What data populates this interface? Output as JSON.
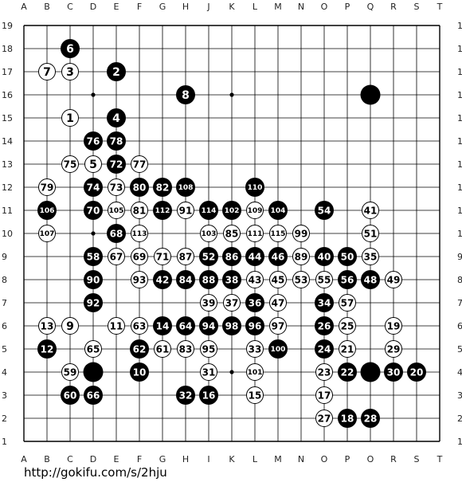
{
  "board": {
    "size": 19,
    "columns": [
      "A",
      "B",
      "C",
      "D",
      "E",
      "F",
      "G",
      "H",
      "J",
      "K",
      "L",
      "M",
      "N",
      "O",
      "P",
      "Q",
      "R",
      "S",
      "T"
    ],
    "rows": [
      19,
      18,
      17,
      16,
      15,
      14,
      13,
      12,
      11,
      10,
      9,
      8,
      7,
      6,
      5,
      4,
      3,
      2,
      1
    ],
    "hoshi": [
      "D16",
      "K16",
      "D10",
      "K4"
    ],
    "colors": {
      "line": "#000000",
      "black": "#000000",
      "white": "#ffffff",
      "background": "#ffffff"
    }
  },
  "stones": [
    {
      "c": "black",
      "p": "Q16",
      "n": ""
    },
    {
      "c": "black",
      "p": "D4",
      "n": ""
    },
    {
      "c": "black",
      "p": "Q4",
      "n": ""
    },
    {
      "c": "black",
      "p": "C18",
      "n": "6"
    },
    {
      "c": "white",
      "p": "B17",
      "n": "7"
    },
    {
      "c": "white",
      "p": "C17",
      "n": "3"
    },
    {
      "c": "black",
      "p": "E17",
      "n": "2"
    },
    {
      "c": "black",
      "p": "H16",
      "n": "8"
    },
    {
      "c": "white",
      "p": "C15",
      "n": "1"
    },
    {
      "c": "black",
      "p": "E15",
      "n": "4"
    },
    {
      "c": "black",
      "p": "D14",
      "n": "76"
    },
    {
      "c": "black",
      "p": "E14",
      "n": "78"
    },
    {
      "c": "white",
      "p": "C13",
      "n": "75"
    },
    {
      "c": "white",
      "p": "D13",
      "n": "5"
    },
    {
      "c": "black",
      "p": "E13",
      "n": "72"
    },
    {
      "c": "white",
      "p": "F13",
      "n": "77"
    },
    {
      "c": "white",
      "p": "B12",
      "n": "79"
    },
    {
      "c": "black",
      "p": "D12",
      "n": "74"
    },
    {
      "c": "white",
      "p": "E12",
      "n": "73"
    },
    {
      "c": "black",
      "p": "F12",
      "n": "80"
    },
    {
      "c": "black",
      "p": "G12",
      "n": "82"
    },
    {
      "c": "black",
      "p": "H12",
      "n": "108"
    },
    {
      "c": "black",
      "p": "L12",
      "n": "110"
    },
    {
      "c": "black",
      "p": "B11",
      "n": "106"
    },
    {
      "c": "black",
      "p": "D11",
      "n": "70"
    },
    {
      "c": "white",
      "p": "E11",
      "n": "105"
    },
    {
      "c": "white",
      "p": "F11",
      "n": "81"
    },
    {
      "c": "black",
      "p": "G11",
      "n": "112"
    },
    {
      "c": "white",
      "p": "H11",
      "n": "91"
    },
    {
      "c": "black",
      "p": "J11",
      "n": "114"
    },
    {
      "c": "black",
      "p": "K11",
      "n": "102"
    },
    {
      "c": "white",
      "p": "L11",
      "n": "109"
    },
    {
      "c": "black",
      "p": "M11",
      "n": "104"
    },
    {
      "c": "black",
      "p": "O11",
      "n": "54"
    },
    {
      "c": "white",
      "p": "Q11",
      "n": "41"
    },
    {
      "c": "white",
      "p": "B10",
      "n": "107"
    },
    {
      "c": "black",
      "p": "E10",
      "n": "68"
    },
    {
      "c": "white",
      "p": "F10",
      "n": "113"
    },
    {
      "c": "white",
      "p": "J10",
      "n": "103"
    },
    {
      "c": "white",
      "p": "K10",
      "n": "85"
    },
    {
      "c": "white",
      "p": "L10",
      "n": "111"
    },
    {
      "c": "white",
      "p": "M10",
      "n": "115"
    },
    {
      "c": "white",
      "p": "N10",
      "n": "99"
    },
    {
      "c": "white",
      "p": "Q10",
      "n": "51"
    },
    {
      "c": "black",
      "p": "D9",
      "n": "58"
    },
    {
      "c": "white",
      "p": "E9",
      "n": "67"
    },
    {
      "c": "white",
      "p": "F9",
      "n": "69"
    },
    {
      "c": "white",
      "p": "G9",
      "n": "71"
    },
    {
      "c": "white",
      "p": "H9",
      "n": "87"
    },
    {
      "c": "black",
      "p": "J9",
      "n": "52"
    },
    {
      "c": "black",
      "p": "K9",
      "n": "86"
    },
    {
      "c": "black",
      "p": "L9",
      "n": "44"
    },
    {
      "c": "black",
      "p": "M9",
      "n": "46"
    },
    {
      "c": "white",
      "p": "N9",
      "n": "89"
    },
    {
      "c": "black",
      "p": "O9",
      "n": "40"
    },
    {
      "c": "black",
      "p": "P9",
      "n": "50"
    },
    {
      "c": "white",
      "p": "Q9",
      "n": "35"
    },
    {
      "c": "black",
      "p": "D8",
      "n": "90"
    },
    {
      "c": "white",
      "p": "F8",
      "n": "93"
    },
    {
      "c": "black",
      "p": "G8",
      "n": "42"
    },
    {
      "c": "black",
      "p": "H8",
      "n": "84"
    },
    {
      "c": "black",
      "p": "J8",
      "n": "88"
    },
    {
      "c": "black",
      "p": "K8",
      "n": "38"
    },
    {
      "c": "white",
      "p": "L8",
      "n": "43"
    },
    {
      "c": "white",
      "p": "M8",
      "n": "45"
    },
    {
      "c": "white",
      "p": "N8",
      "n": "53"
    },
    {
      "c": "white",
      "p": "O8",
      "n": "55"
    },
    {
      "c": "black",
      "p": "P8",
      "n": "56"
    },
    {
      "c": "black",
      "p": "Q8",
      "n": "48"
    },
    {
      "c": "white",
      "p": "R8",
      "n": "49"
    },
    {
      "c": "black",
      "p": "D7",
      "n": "92"
    },
    {
      "c": "white",
      "p": "J7",
      "n": "39"
    },
    {
      "c": "white",
      "p": "K7",
      "n": "37"
    },
    {
      "c": "black",
      "p": "L7",
      "n": "36"
    },
    {
      "c": "white",
      "p": "M7",
      "n": "47"
    },
    {
      "c": "black",
      "p": "O7",
      "n": "34"
    },
    {
      "c": "white",
      "p": "P7",
      "n": "57"
    },
    {
      "c": "white",
      "p": "B6",
      "n": "13"
    },
    {
      "c": "white",
      "p": "C6",
      "n": "9"
    },
    {
      "c": "white",
      "p": "E6",
      "n": "11"
    },
    {
      "c": "white",
      "p": "F6",
      "n": "63"
    },
    {
      "c": "black",
      "p": "G6",
      "n": "14"
    },
    {
      "c": "black",
      "p": "H6",
      "n": "64"
    },
    {
      "c": "black",
      "p": "J6",
      "n": "94"
    },
    {
      "c": "black",
      "p": "K6",
      "n": "98"
    },
    {
      "c": "black",
      "p": "L6",
      "n": "96"
    },
    {
      "c": "white",
      "p": "M6",
      "n": "97"
    },
    {
      "c": "black",
      "p": "O6",
      "n": "26"
    },
    {
      "c": "white",
      "p": "P6",
      "n": "25"
    },
    {
      "c": "white",
      "p": "R6",
      "n": "19"
    },
    {
      "c": "black",
      "p": "B5",
      "n": "12"
    },
    {
      "c": "white",
      "p": "D5",
      "n": "65"
    },
    {
      "c": "black",
      "p": "F5",
      "n": "62"
    },
    {
      "c": "white",
      "p": "G5",
      "n": "61"
    },
    {
      "c": "white",
      "p": "H5",
      "n": "83"
    },
    {
      "c": "white",
      "p": "J5",
      "n": "95"
    },
    {
      "c": "white",
      "p": "L5",
      "n": "33"
    },
    {
      "c": "black",
      "p": "M5",
      "n": "100"
    },
    {
      "c": "black",
      "p": "O5",
      "n": "24"
    },
    {
      "c": "white",
      "p": "P5",
      "n": "21"
    },
    {
      "c": "white",
      "p": "R5",
      "n": "29"
    },
    {
      "c": "white",
      "p": "C4",
      "n": "59"
    },
    {
      "c": "black",
      "p": "F4",
      "n": "10"
    },
    {
      "c": "white",
      "p": "J4",
      "n": "31"
    },
    {
      "c": "white",
      "p": "L4",
      "n": "101"
    },
    {
      "c": "white",
      "p": "O4",
      "n": "23"
    },
    {
      "c": "black",
      "p": "P4",
      "n": "22"
    },
    {
      "c": "black",
      "p": "R4",
      "n": "30"
    },
    {
      "c": "black",
      "p": "S4",
      "n": "20"
    },
    {
      "c": "black",
      "p": "C3",
      "n": "60"
    },
    {
      "c": "black",
      "p": "D3",
      "n": "66"
    },
    {
      "c": "black",
      "p": "H3",
      "n": "32"
    },
    {
      "c": "black",
      "p": "J3",
      "n": "16"
    },
    {
      "c": "white",
      "p": "L3",
      "n": "15"
    },
    {
      "c": "white",
      "p": "O3",
      "n": "17"
    },
    {
      "c": "white",
      "p": "O2",
      "n": "27"
    },
    {
      "c": "black",
      "p": "P2",
      "n": "18"
    },
    {
      "c": "black",
      "p": "Q2",
      "n": "28"
    }
  ],
  "footer": {
    "url": "http://gokifu.com/s/2hju"
  }
}
